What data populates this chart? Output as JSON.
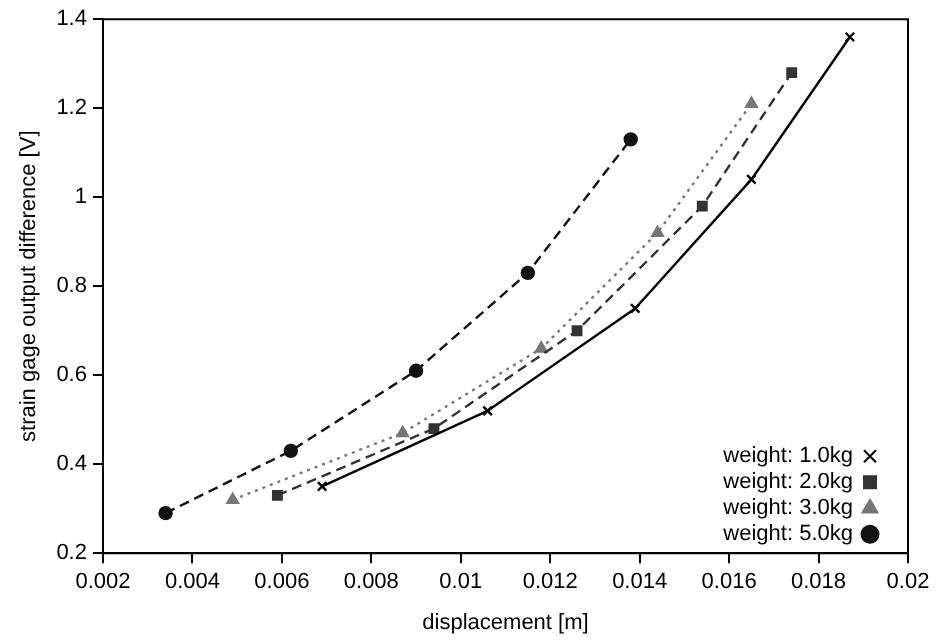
{
  "chart_data": {
    "type": "line",
    "xlabel": "displacement [m]",
    "ylabel": "strain gage output difference [V]",
    "xlim": [
      0.002,
      0.02
    ],
    "xticks": [
      0.002,
      0.004,
      0.006,
      0.008,
      0.01,
      0.012,
      0.014,
      0.016,
      0.018,
      0.02
    ],
    "ylim": [
      0.2,
      1.4
    ],
    "yticks": [
      0.2,
      0.4,
      0.6,
      0.8,
      1,
      1.2,
      1.4
    ],
    "grid": false,
    "legend": "bottom right",
    "series": [
      {
        "name": "weight: 1.0kg",
        "color": "#000000",
        "marker": "cross",
        "line_style": "solid",
        "x": [
          0.0069,
          0.0106,
          0.0139,
          0.0165,
          0.0187
        ],
        "values": [
          0.35,
          0.52,
          0.75,
          1.04,
          1.36
        ]
      },
      {
        "name": "weight: 2.0kg",
        "color": "#333333",
        "marker": "square",
        "line_style": "dashed",
        "x": [
          0.0059,
          0.0094,
          0.0126,
          0.0154,
          0.0174
        ],
        "values": [
          0.33,
          0.48,
          0.7,
          0.98,
          1.28
        ]
      },
      {
        "name": "weight: 3.0kg",
        "color": "#777777",
        "marker": "triangle",
        "line_style": "dotted",
        "x": [
          0.0049,
          0.0087,
          0.0118,
          0.0144,
          0.0165
        ],
        "values": [
          0.32,
          0.47,
          0.66,
          0.92,
          1.21
        ]
      },
      {
        "name": "weight: 5.0kg",
        "color": "#111111",
        "marker": "circle",
        "line_style": "dashed",
        "x": [
          0.0034,
          0.0062,
          0.009,
          0.0115,
          0.0138
        ],
        "values": [
          0.29,
          0.43,
          0.61,
          0.83,
          1.13
        ]
      }
    ]
  }
}
